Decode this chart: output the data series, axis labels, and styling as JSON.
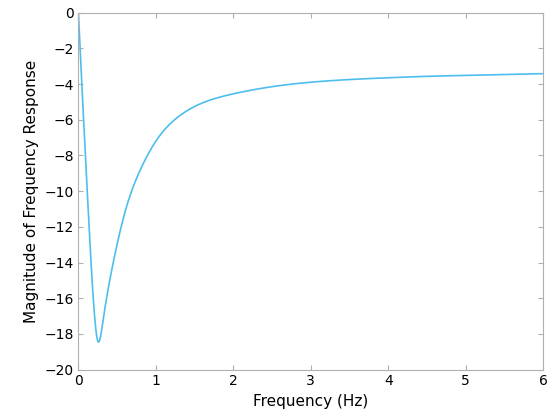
{
  "xlabel": "Frequency (Hz)",
  "ylabel": "Magnitude of Frequency Response",
  "xlim": [
    0,
    6
  ],
  "ylim": [
    -20,
    0
  ],
  "xticks": [
    0,
    1,
    2,
    3,
    4,
    5,
    6
  ],
  "yticks": [
    0,
    -2,
    -4,
    -6,
    -8,
    -10,
    -12,
    -14,
    -16,
    -18,
    -20
  ],
  "line_color": "#4DBEEE",
  "line_width": 1.2,
  "background_color": "#ffffff",
  "border_color": "#b0b0b0",
  "tick_label_size": 10,
  "xlabel_fontsize": 11,
  "ylabel_fontsize": 11,
  "f_pts": [
    0,
    0.05,
    0.12,
    0.2,
    0.25,
    0.32,
    0.45,
    0.6,
    0.8,
    1.0,
    1.3,
    1.7,
    2.0,
    2.5,
    3.0,
    3.5,
    4.0,
    4.5,
    5.0,
    5.5,
    6.0
  ],
  "y_pts": [
    0,
    -4.5,
    -10.5,
    -16.5,
    -18.4,
    -17.2,
    -14.0,
    -11.2,
    -8.8,
    -7.2,
    -5.8,
    -4.9,
    -4.55,
    -4.15,
    -3.9,
    -3.75,
    -3.65,
    -3.57,
    -3.52,
    -3.47,
    -3.42
  ]
}
